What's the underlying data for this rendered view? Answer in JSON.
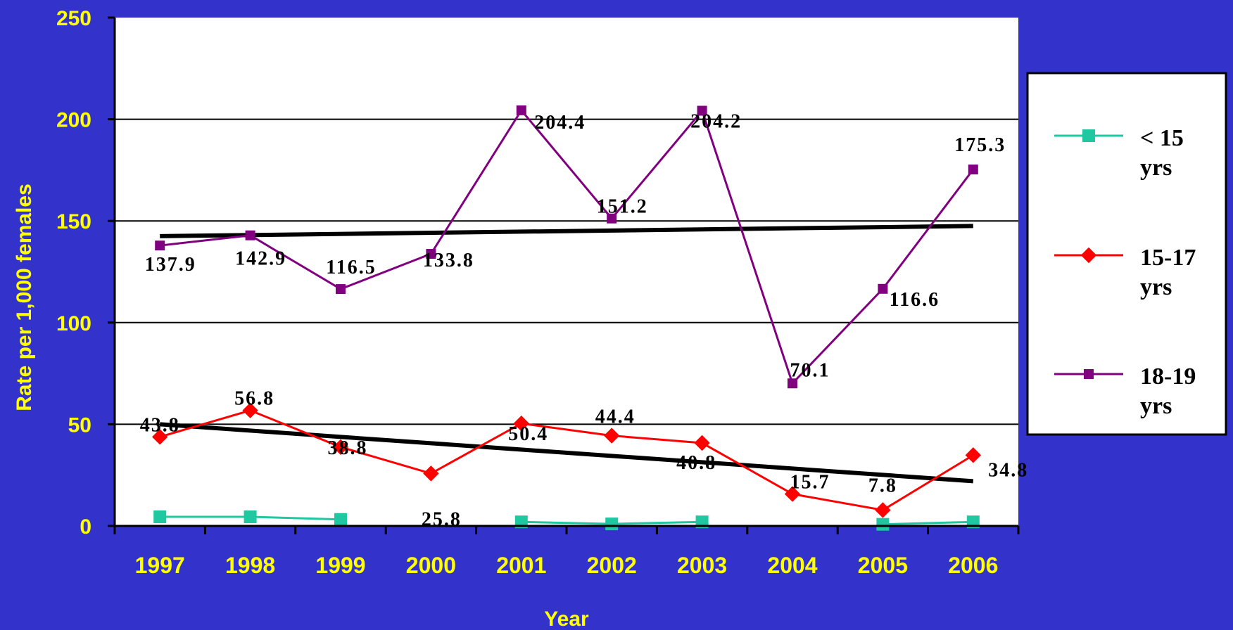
{
  "chart_data": {
    "type": "line",
    "xlabel": "Year",
    "ylabel": "Rate per 1,000 females",
    "ylim": [
      0,
      250
    ],
    "yticks": [
      0,
      50,
      100,
      150,
      200,
      250
    ],
    "categories": [
      "1997",
      "1998",
      "1999",
      "2000",
      "2001",
      "2002",
      "2003",
      "2004",
      "2005",
      "2006"
    ],
    "grid": "horizontal",
    "legend_position": "right",
    "series": [
      {
        "name": "< 15 yrs",
        "color": "#1fc8a0",
        "marker": "square",
        "values": [
          4.5,
          4.5,
          3.2,
          null,
          2.0,
          1.0,
          2.0,
          null,
          0.8,
          2.0
        ],
        "labels": [
          "",
          "",
          "",
          "",
          "",
          "",
          "",
          "",
          "",
          ""
        ]
      },
      {
        "name": "15-17 yrs",
        "color": "#ff0000",
        "marker": "diamond",
        "values": [
          43.8,
          56.8,
          38.8,
          25.8,
          50.4,
          44.4,
          40.8,
          15.7,
          7.8,
          34.8
        ],
        "labels": [
          "43.8",
          "56.8",
          "38.8",
          "25.8",
          "50.4",
          "44.4",
          "40.8",
          "15.7",
          "7.8",
          "34.8"
        ]
      },
      {
        "name": "18-19 yrs",
        "color": "#800080",
        "marker": "square",
        "values": [
          137.9,
          142.9,
          116.5,
          133.8,
          204.4,
          151.2,
          204.2,
          70.1,
          116.6,
          175.3
        ],
        "labels": [
          "137.9",
          "142.9",
          "116.5",
          "133.8",
          "204.4",
          "151.2",
          "204.2",
          "70.1",
          "116.6",
          "175.3"
        ]
      }
    ],
    "trendlines": [
      {
        "color": "#000000",
        "start": 142.5,
        "end": 147.5
      },
      {
        "color": "#000000",
        "start": 50.0,
        "end": 22.0
      }
    ],
    "colors": {
      "background": "#3333cc",
      "plot_area": "#ffffff",
      "axis_text": "#ffff00",
      "gridline": "#000000"
    }
  }
}
